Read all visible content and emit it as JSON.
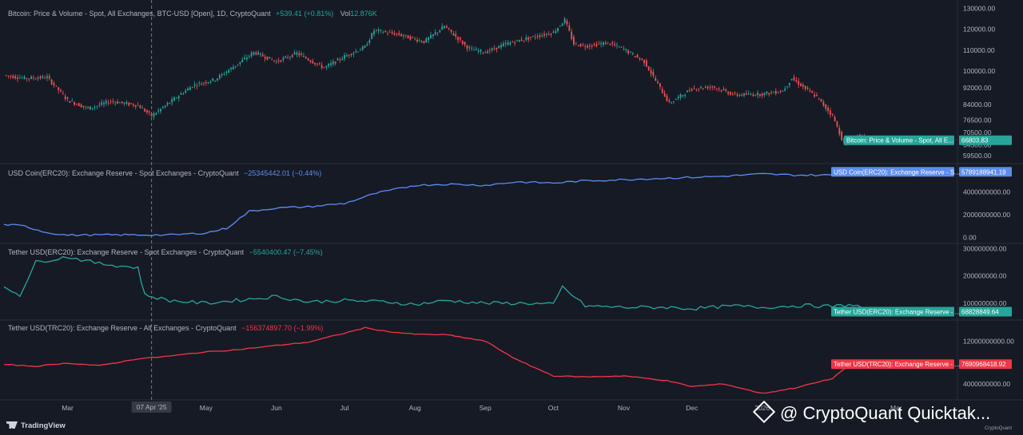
{
  "chart_data": [
    {
      "type": "candlestick",
      "legend": "Bitcoin: Price & Volume - Spot, All Exchanges, BTC-USD [Open], 1D, CryptoQuant",
      "change": "+539.41 (+0.81%)",
      "volume_label": "Vol",
      "volume_value": "12.876K",
      "last_value_label": "66803.83",
      "value_tag": "Bitcoin: Price & Volume - Spot, All E...",
      "y_ticks": [
        "130000.00",
        "120000.00",
        "110000.00",
        "100000.00",
        "92000.00",
        "84000.00",
        "76500.00",
        "70500.00",
        "64500.00",
        "59500.00"
      ],
      "ylim": [
        57500,
        131000
      ],
      "x": [
        "2025-02-01",
        "2025-02-10",
        "2025-02-20",
        "2025-03-01",
        "2025-03-10",
        "2025-03-20",
        "2025-04-01",
        "2025-04-07",
        "2025-04-15",
        "2025-04-25",
        "2025-05-05",
        "2025-05-15",
        "2025-05-22",
        "2025-06-01",
        "2025-06-10",
        "2025-06-22",
        "2025-07-01",
        "2025-07-10",
        "2025-07-14",
        "2025-07-25",
        "2025-08-05",
        "2025-08-14",
        "2025-08-25",
        "2025-09-01",
        "2025-09-10",
        "2025-09-20",
        "2025-10-01",
        "2025-10-06",
        "2025-10-10",
        "2025-10-15",
        "2025-10-25",
        "2025-11-01",
        "2025-11-10",
        "2025-11-21",
        "2025-12-01",
        "2025-12-10",
        "2025-12-20",
        "2026-01-01",
        "2026-01-10",
        "2026-01-14",
        "2026-01-25",
        "2026-02-01",
        "2026-02-06",
        "2026-02-12",
        "2026-02-18"
      ],
      "values": [
        98000,
        96500,
        97000,
        86000,
        82000,
        85500,
        83500,
        78500,
        85000,
        93000,
        96000,
        103500,
        109000,
        104500,
        108500,
        101500,
        107000,
        111500,
        119500,
        117500,
        114000,
        121500,
        110500,
        109000,
        113000,
        115800,
        118500,
        124500,
        113000,
        112000,
        113500,
        110500,
        104500,
        84500,
        91500,
        92500,
        88500,
        89000,
        90500,
        96500,
        87500,
        78500,
        65000,
        69000,
        66803.83
      ]
    },
    {
      "type": "line",
      "legend": "USD Coin(ERC20): Exchange Reserve - Spot Exchanges - CryptoQuant",
      "change": "−25345442.01 (−0.44%)",
      "color": "#5b8def",
      "last_value_label": "5789188941.19",
      "value_tag": "USD Coin(ERC20): Exchange Reserve - S...",
      "y_ticks": [
        "4000000000.00",
        "2000000000.00",
        "0.00"
      ],
      "ylim": [
        -250000000,
        6300000000
      ],
      "x": [
        "2025-02-01",
        "2025-02-10",
        "2025-02-20",
        "2025-03-01",
        "2025-03-15",
        "2025-04-01",
        "2025-04-15",
        "2025-05-01",
        "2025-05-10",
        "2025-05-20",
        "2025-06-01",
        "2025-06-15",
        "2025-07-01",
        "2025-07-15",
        "2025-08-01",
        "2025-08-15",
        "2025-09-01",
        "2025-09-15",
        "2025-10-01",
        "2025-10-15",
        "2025-11-01",
        "2025-11-15",
        "2025-12-01",
        "2025-12-15",
        "2026-01-01",
        "2026-01-15",
        "2026-02-01",
        "2026-02-10",
        "2026-02-18"
      ],
      "values": [
        1150000000,
        1000000000,
        420000000,
        200000000,
        220000000,
        230000000,
        210000000,
        400000000,
        800000000,
        2300000000,
        2600000000,
        2700000000,
        3000000000,
        3900000000,
        4600000000,
        4700000000,
        4600000000,
        4900000000,
        4800000000,
        5000000000,
        5100000000,
        5200000000,
        5300000000,
        5400000000,
        5600000000,
        5500000000,
        5500000000,
        5800000000,
        5789188941.19
      ]
    },
    {
      "type": "line",
      "legend": "Tether USD(ERC20): Exchange Reserve - Spot Exchanges - CryptoQuant",
      "change": "−5540400.47 (−7.45%)",
      "color": "#26a69a",
      "last_value_label": "68828849.64",
      "value_tag": "Tether USD(ERC20): Exchange Reserve - ...",
      "y_ticks": [
        "300000000.00",
        "200000000.00",
        "100000000.00"
      ],
      "ylim": [
        50000000,
        310000000
      ],
      "x": [
        "2025-02-01",
        "2025-02-08",
        "2025-02-15",
        "2025-03-01",
        "2025-03-15",
        "2025-04-01",
        "2025-04-04",
        "2025-04-15",
        "2025-05-01",
        "2025-05-20",
        "2025-06-01",
        "2025-06-15",
        "2025-07-01",
        "2025-07-20",
        "2025-08-01",
        "2025-08-15",
        "2025-09-01",
        "2025-09-20",
        "2025-10-01",
        "2025-10-05",
        "2025-10-15",
        "2025-11-01",
        "2025-11-20",
        "2025-12-01",
        "2025-12-20",
        "2026-01-01",
        "2026-01-20",
        "2026-02-01",
        "2026-02-10",
        "2026-02-18"
      ],
      "values": [
        160000000,
        130000000,
        250000000,
        270000000,
        245000000,
        230000000,
        130000000,
        110000000,
        100000000,
        115000000,
        125000000,
        105000000,
        110000000,
        105000000,
        95000000,
        110000000,
        100000000,
        100000000,
        95000000,
        160000000,
        90000000,
        85000000,
        85000000,
        80000000,
        90000000,
        85000000,
        92000000,
        88000000,
        95000000,
        68828849.64
      ]
    },
    {
      "type": "line",
      "legend": "Tether USD(TRC20): Exchange Reserve - All Exchanges - CryptoQuant",
      "change": "−156374897.70 (−1.99%)",
      "color": "#f23645",
      "last_value_label": "7690968418.92",
      "value_tag": "Tether USD(TRC20): Exchange Reserve - ...",
      "y_ticks": [
        "12000000000.00",
        "4000000000.00"
      ],
      "ylim": [
        1600000000,
        15500000000
      ],
      "x": [
        "2025-02-01",
        "2025-02-15",
        "2025-03-01",
        "2025-03-15",
        "2025-04-01",
        "2025-04-15",
        "2025-05-01",
        "2025-05-15",
        "2025-06-01",
        "2025-06-15",
        "2025-07-01",
        "2025-07-10",
        "2025-07-20",
        "2025-08-01",
        "2025-08-15",
        "2025-09-01",
        "2025-09-15",
        "2025-10-01",
        "2025-10-15",
        "2025-11-01",
        "2025-11-20",
        "2025-12-01",
        "2025-12-15",
        "2026-01-01",
        "2026-01-15",
        "2026-02-01",
        "2026-02-05",
        "2026-02-12",
        "2026-02-18"
      ],
      "values": [
        7600000000,
        7300000000,
        7900000000,
        7400000000,
        8700000000,
        9200000000,
        10000000000,
        10400000000,
        11200000000,
        11800000000,
        13500000000,
        14500000000,
        13800000000,
        13300000000,
        13200000000,
        12000000000,
        8500000000,
        5500000000,
        5300000000,
        5500000000,
        4600000000,
        3500000000,
        4000000000,
        2200000000,
        3200000000,
        5000000000,
        6500000000,
        8200000000,
        7690968418.92
      ]
    }
  ],
  "time_axis": {
    "labels": [
      "Mar",
      "May",
      "Jun",
      "Jul",
      "Aug",
      "Sep",
      "Oct",
      "Nov",
      "Dec",
      "2026",
      "Mar"
    ],
    "crosshair_label": "07 Apr '25"
  },
  "branding": {
    "tv": "TradingView",
    "watermark": "@ CryptoQuant Quicktak...",
    "small": "CryptoQuant"
  },
  "colors": {
    "background": "#161a25",
    "up": "#26a69a",
    "down": "#ef5350",
    "usdc": "#5b8def",
    "usdt_erc20": "#26a69a",
    "usdt_trc20": "#f23645"
  }
}
